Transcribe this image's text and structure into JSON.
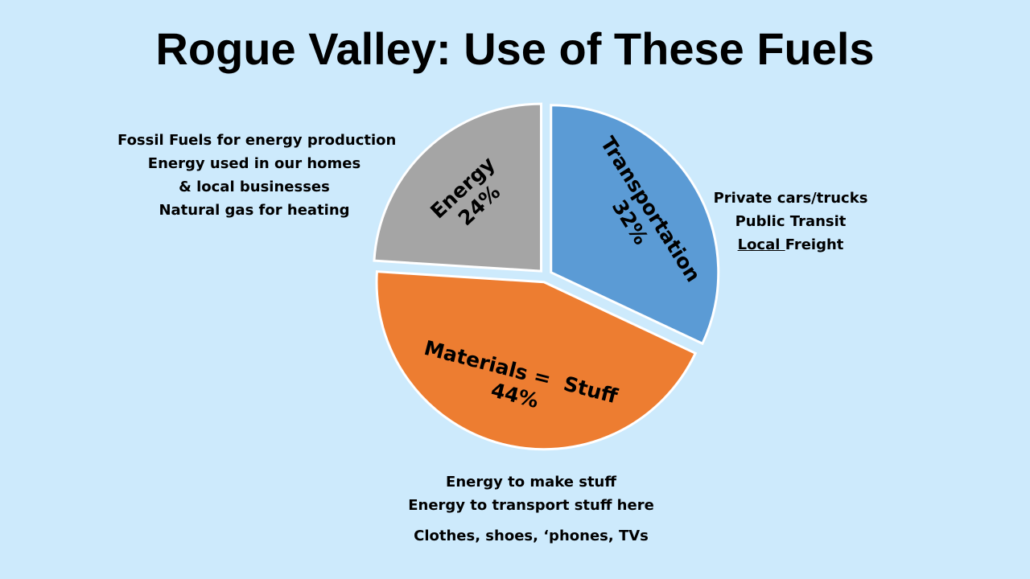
{
  "title": "Rogue Valley: Use of These Fuels",
  "chart_data": {
    "type": "pie",
    "title": "Rogue Valley: Use of These Fuels",
    "slices": [
      {
        "name": "Transportation",
        "value": 32,
        "label_line1": "Transportation",
        "label_line2": "32%",
        "color": "#5b9bd5"
      },
      {
        "name": "Materials = Stuff",
        "value": 44,
        "label_line1": "Materials =  Stuff",
        "label_line2": "44%",
        "color": "#ed7d31"
      },
      {
        "name": "Energy",
        "value": 24,
        "label_line1": "Energy",
        "label_line2": "24%",
        "color": "#a5a5a5"
      }
    ],
    "exploded": true,
    "legend": "none"
  },
  "annotations": {
    "energy": {
      "lines": [
        "Fossil Fuels for energy production",
        "Energy used in our homes",
        "& local businesses",
        "Natural gas for heating"
      ]
    },
    "transportation": {
      "line1": "Private cars/trucks",
      "line2": "Public Transit",
      "line3_underlined": "Local ",
      "line3_rest": "Freight"
    },
    "materials": {
      "lines": [
        "Energy to make stuff",
        "Energy to transport stuff here"
      ],
      "last_line": "Clothes, shoes, ‘phones, TVs"
    }
  },
  "colors": {
    "background": "#cdeafc",
    "slice_border": "#ffffff"
  }
}
